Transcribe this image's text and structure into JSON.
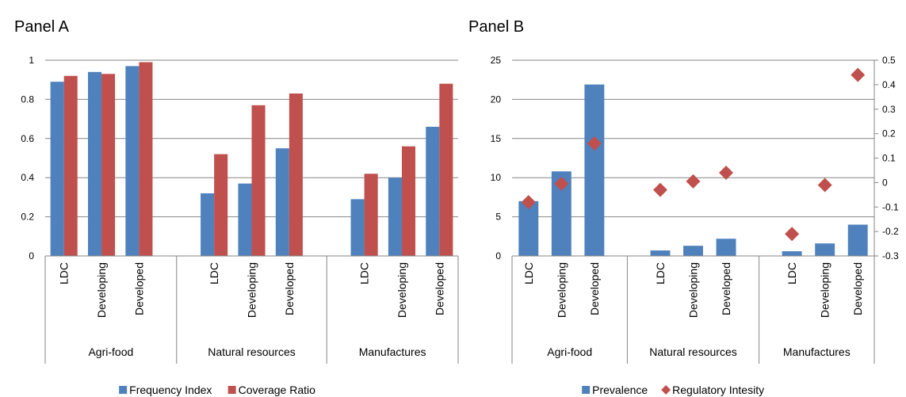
{
  "colors": {
    "blue": "#4F81BD",
    "red": "#C0504D",
    "grid": "#868686",
    "text": "#000000"
  },
  "chart_data": [
    {
      "type": "bar",
      "title": "Panel A",
      "groups": [
        "Agri-food",
        "Natural resources",
        "Manufactures"
      ],
      "categories": [
        "LDC",
        "Developing",
        "Developed"
      ],
      "ylim": [
        0,
        1
      ],
      "yticks": [
        0,
        0.2,
        0.4,
        0.6,
        0.8,
        1
      ],
      "ytick_labels": [
        "0",
        "0.2",
        "0.4",
        "0.6",
        "0.8",
        "1"
      ],
      "grid": true,
      "legend_position": "bottom",
      "series": [
        {
          "name": "Frequency Index",
          "color": "#4F81BD",
          "values": [
            [
              0.89,
              0.94,
              0.97
            ],
            [
              0.32,
              0.37,
              0.55
            ],
            [
              0.29,
              0.4,
              0.66
            ]
          ]
        },
        {
          "name": "Coverage Ratio",
          "color": "#C0504D",
          "values": [
            [
              0.92,
              0.93,
              0.99
            ],
            [
              0.52,
              0.77,
              0.83
            ],
            [
              0.42,
              0.56,
              0.88
            ]
          ]
        }
      ]
    },
    {
      "type": "bar",
      "title": "Panel B",
      "groups": [
        "Agri-food",
        "Natural resources",
        "Manufactures"
      ],
      "categories": [
        "LDC",
        "Developing",
        "Developed"
      ],
      "ylim": [
        0,
        25
      ],
      "yticks": [
        0,
        5,
        10,
        15,
        20,
        25
      ],
      "ytick_labels": [
        "0",
        "5",
        "10",
        "15",
        "20",
        "25"
      ],
      "y2lim": [
        -0.3,
        0.5
      ],
      "y2ticks": [
        -0.3,
        -0.2,
        -0.1,
        0,
        0.1,
        0.2,
        0.3,
        0.4,
        0.5
      ],
      "y2tick_labels": [
        "-0.3",
        "-0.2",
        "-0.1",
        "0",
        "0.1",
        "0.2",
        "0.3",
        "0.4",
        "0.5"
      ],
      "grid": true,
      "legend_position": "bottom",
      "series": [
        {
          "name": "Prevalence",
          "type": "bar",
          "axis": "left",
          "color": "#4F81BD",
          "values": [
            [
              7.0,
              10.8,
              21.9
            ],
            [
              0.7,
              1.3,
              2.2
            ],
            [
              0.6,
              1.6,
              4.0
            ]
          ]
        },
        {
          "name": "Regulatory Intesity",
          "type": "scatter",
          "marker": "diamond",
          "axis": "right",
          "color": "#C0504D",
          "values": [
            [
              -0.08,
              -0.005,
              0.16
            ],
            [
              -0.03,
              0.005,
              0.04
            ],
            [
              -0.21,
              -0.01,
              0.44
            ]
          ]
        }
      ]
    }
  ]
}
